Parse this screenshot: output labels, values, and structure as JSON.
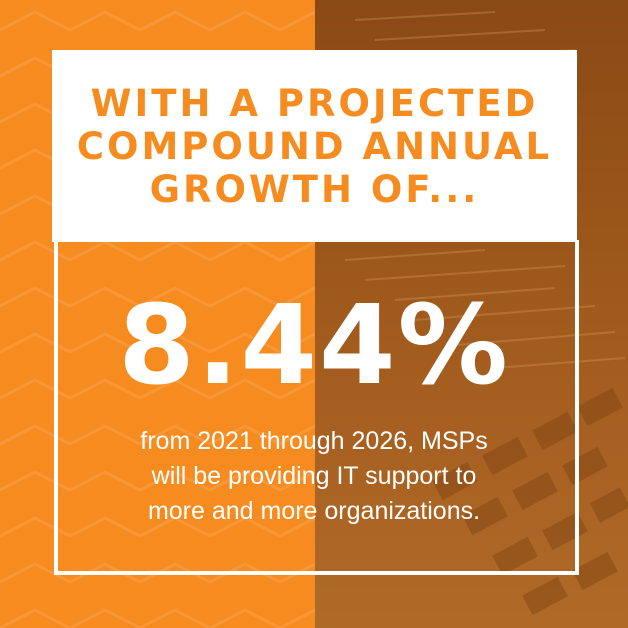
{
  "headline": {
    "lines": [
      "WITH A PROJECTED",
      "COMPOUND ANNUAL",
      "GROWTH OF..."
    ]
  },
  "stat": {
    "value": "8.44%"
  },
  "description": {
    "lines": [
      "from 2021 through 2026, MSPs",
      "will be providing IT support to",
      "more and more organizations."
    ]
  },
  "colors": {
    "accent_orange": "#f68b1f",
    "photo_tint": "#9a5519",
    "white": "#ffffff"
  }
}
